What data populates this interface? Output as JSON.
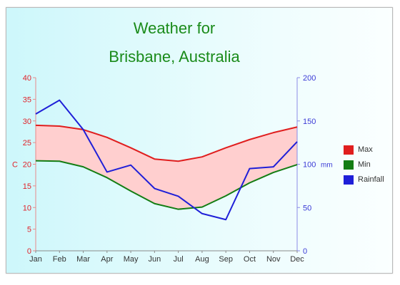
{
  "chart_data": {
    "type": "line",
    "title": [
      "Weather for",
      "Brisbane, Australia"
    ],
    "categories": [
      "Jan",
      "Feb",
      "Mar",
      "Apr",
      "May",
      "Jun",
      "Jul",
      "Aug",
      "Sep",
      "Oct",
      "Nov",
      "Dec"
    ],
    "left_axis": {
      "label": "C",
      "min": 0,
      "max": 40,
      "step": 5,
      "ticks": [
        "0",
        "5",
        "10",
        "15",
        "20",
        "25",
        "30",
        "35",
        "40"
      ],
      "color": "#e0232a"
    },
    "right_axis": {
      "label": "mm",
      "min": 0,
      "max": 200,
      "step": 50,
      "ticks": [
        "0",
        "50",
        "100",
        "150",
        "200"
      ],
      "color": "#3b3bd6"
    },
    "series": [
      {
        "name": "Max",
        "axis": "left",
        "color": "#e01e1e",
        "values": [
          29,
          28.8,
          28,
          26.2,
          23.8,
          21.2,
          20.7,
          21.7,
          23.8,
          25.7,
          27.3,
          28.6
        ]
      },
      {
        "name": "Min",
        "axis": "left",
        "color": "#137d13",
        "values": [
          20.8,
          20.7,
          19.4,
          16.9,
          13.8,
          10.9,
          9.6,
          10.1,
          12.7,
          15.7,
          18.1,
          19.9
        ]
      },
      {
        "name": "Rainfall",
        "axis": "right",
        "color": "#1f1fd8",
        "values": [
          158,
          174,
          140,
          91,
          99,
          72,
          63,
          43,
          36,
          95,
          97,
          126
        ]
      }
    ],
    "range_fill": {
      "between": [
        "Max",
        "Min"
      ],
      "color": "#ffcfcf"
    },
    "grid": false,
    "legend_position": "right"
  }
}
